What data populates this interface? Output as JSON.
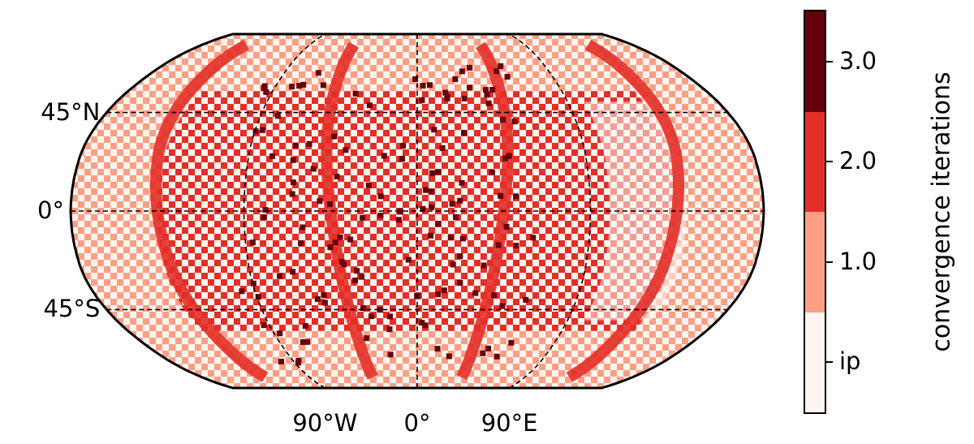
{
  "map": {
    "projection": "robinson",
    "gridlines": {
      "latitudes": [
        -45,
        0,
        45
      ],
      "longitudes": [
        -90,
        0,
        90
      ],
      "style": "dashed"
    },
    "lat_labels": [
      {
        "lat": 45,
        "text": "45°N"
      },
      {
        "lat": 0,
        "text": "0°"
      },
      {
        "lat": -45,
        "text": "45°S"
      }
    ],
    "lon_labels": [
      {
        "lon": -90,
        "text": "90°W"
      },
      {
        "lon": 0,
        "text": "0°"
      },
      {
        "lon": 90,
        "text": "90°E"
      }
    ]
  },
  "colorbar": {
    "label": "convergence iterations",
    "colors": [
      "#fff5f0",
      "#fc9f85",
      "#e32f27",
      "#67000d"
    ],
    "ticks": [
      {
        "value": 0,
        "text": "ip"
      },
      {
        "value": 1,
        "text": "1.0"
      },
      {
        "value": 2,
        "text": "2.0"
      },
      {
        "value": 3,
        "text": "3.0"
      }
    ],
    "range": [
      -0.5,
      3.5
    ]
  }
}
